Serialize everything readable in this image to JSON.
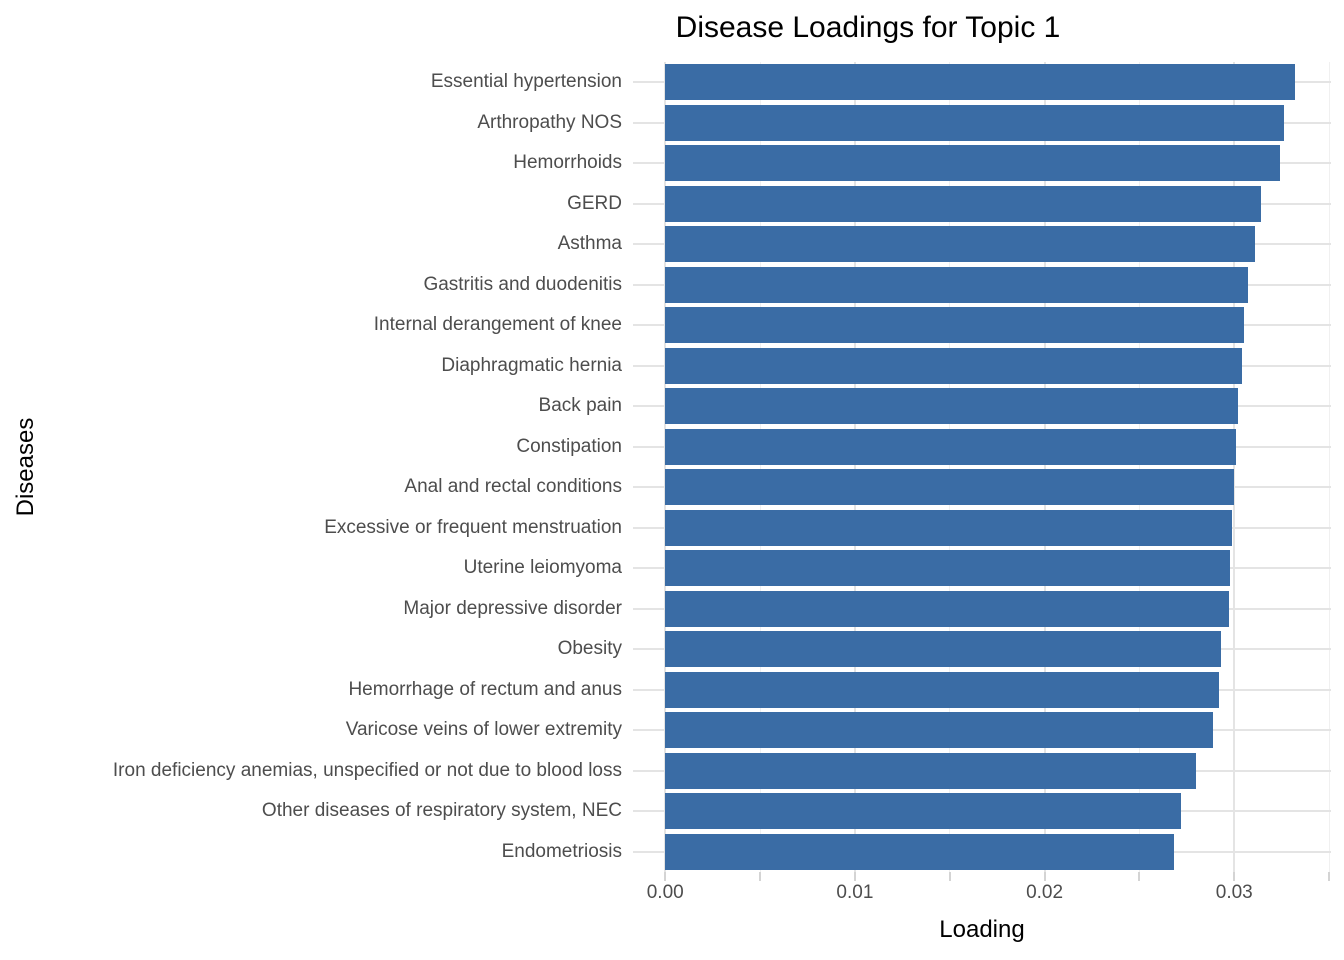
{
  "chart_data": {
    "type": "bar",
    "orientation": "horizontal",
    "title": "Disease Loadings for Topic 1",
    "xlabel": "Loading",
    "ylabel": "Diseases",
    "categories": [
      "Essential hypertension",
      "Arthropathy NOS",
      "Hemorrhoids",
      "GERD",
      "Asthma",
      "Gastritis and duodenitis",
      "Internal derangement of knee",
      "Diaphragmatic hernia",
      "Back pain",
      "Constipation",
      "Anal and rectal conditions",
      "Excessive or frequent menstruation",
      "Uterine leiomyoma",
      "Major depressive disorder",
      "Obesity",
      "Hemorrhage of rectum and anus",
      "Varicose veins of lower extremity",
      "Iron deficiency anemias, unspecified or not due to blood loss",
      "Other diseases of respiratory system, NEC",
      "Endometriosis"
    ],
    "values": [
      0.0332,
      0.0326,
      0.0324,
      0.0314,
      0.0311,
      0.0307,
      0.0305,
      0.0304,
      0.0302,
      0.0301,
      0.03,
      0.0299,
      0.0298,
      0.0297,
      0.0293,
      0.0292,
      0.0289,
      0.028,
      0.0272,
      0.0268
    ],
    "x_major_ticks": [
      0.0,
      0.01,
      0.02,
      0.03
    ],
    "x_tick_labels": [
      "0.00",
      "0.01",
      "0.02",
      "0.03"
    ],
    "x_minor_ticks": [
      0.005,
      0.015,
      0.025,
      0.035
    ],
    "xlim": [
      -0.0017,
      0.0351
    ],
    "grid": true,
    "legend": false,
    "bar_color": "#3a6ca5",
    "colors": {
      "major_grid": "#e4e4e4",
      "minor_grid": "#f0f0f0",
      "tick_mark": "#d4d4d4",
      "axis_text": "#4d4d4d",
      "title_text": "#000000"
    }
  }
}
